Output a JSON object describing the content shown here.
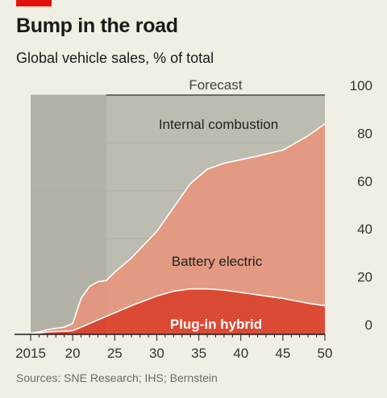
{
  "header": {
    "title": "Bump in the road",
    "subtitle": "Global vehicle sales, % of total"
  },
  "footer": {
    "source": "Sources: SNE Research; IHS; Bernstein"
  },
  "colors": {
    "brand_red": "#e3120b",
    "internal_combustion": "#a8a99c",
    "battery_electric": "#e2957c",
    "plug_in_hybrid": "#d9402b",
    "historical_shade": "#c9c8bc",
    "background": "#f1eee3"
  },
  "chart_data": {
    "type": "area",
    "stacked": true,
    "x_tick_labels": [
      "2015",
      "20",
      "25",
      "30",
      "35",
      "40",
      "45",
      "50"
    ],
    "x_tick_values": [
      2015,
      2020,
      2025,
      2030,
      2035,
      2040,
      2045,
      2050
    ],
    "xlim": [
      2015,
      2050
    ],
    "ylim": [
      0,
      100
    ],
    "y_ticks": [
      0,
      20,
      40,
      60,
      80,
      100
    ],
    "y_axis_side": "right",
    "forecast_label": "Forecast",
    "forecast_start": 2024,
    "x": [
      2015,
      2016,
      2017,
      2018,
      2019,
      2020,
      2021,
      2022,
      2023,
      2024,
      2025,
      2027,
      2030,
      2032,
      2034,
      2036,
      2038,
      2040,
      2042,
      2045,
      2048,
      2050
    ],
    "series": [
      {
        "name": "Plug-in hybrid",
        "values": [
          0.3,
          0.5,
          1.0,
          1.2,
          1.3,
          1.5,
          3.0,
          4.5,
          6.0,
          7.5,
          9.0,
          12.0,
          16.0,
          18.0,
          19.0,
          19.0,
          18.5,
          17.5,
          16.5,
          15.0,
          13.0,
          12.0
        ]
      },
      {
        "name": "Battery electric",
        "values": [
          0.2,
          0.5,
          1.0,
          1.3,
          1.7,
          3.0,
          12.0,
          15.5,
          16.0,
          15.0,
          17.0,
          20.0,
          27.0,
          35.0,
          44.0,
          50.0,
          53.0,
          55.5,
          58.0,
          62.0,
          70.0,
          76.0
        ]
      },
      {
        "name": "Internal combustion",
        "values": [
          99.5,
          99.0,
          98.0,
          97.5,
          97.0,
          95.5,
          85.0,
          80.0,
          78.0,
          77.5,
          74.0,
          68.0,
          57.0,
          47.0,
          37.0,
          31.0,
          28.5,
          27.0,
          25.5,
          23.0,
          17.0,
          12.0
        ]
      }
    ],
    "series_labels": {
      "internal_combustion": "Internal combustion",
      "battery_electric": "Battery electric",
      "plug_in_hybrid": "Plug-in hybrid"
    }
  }
}
